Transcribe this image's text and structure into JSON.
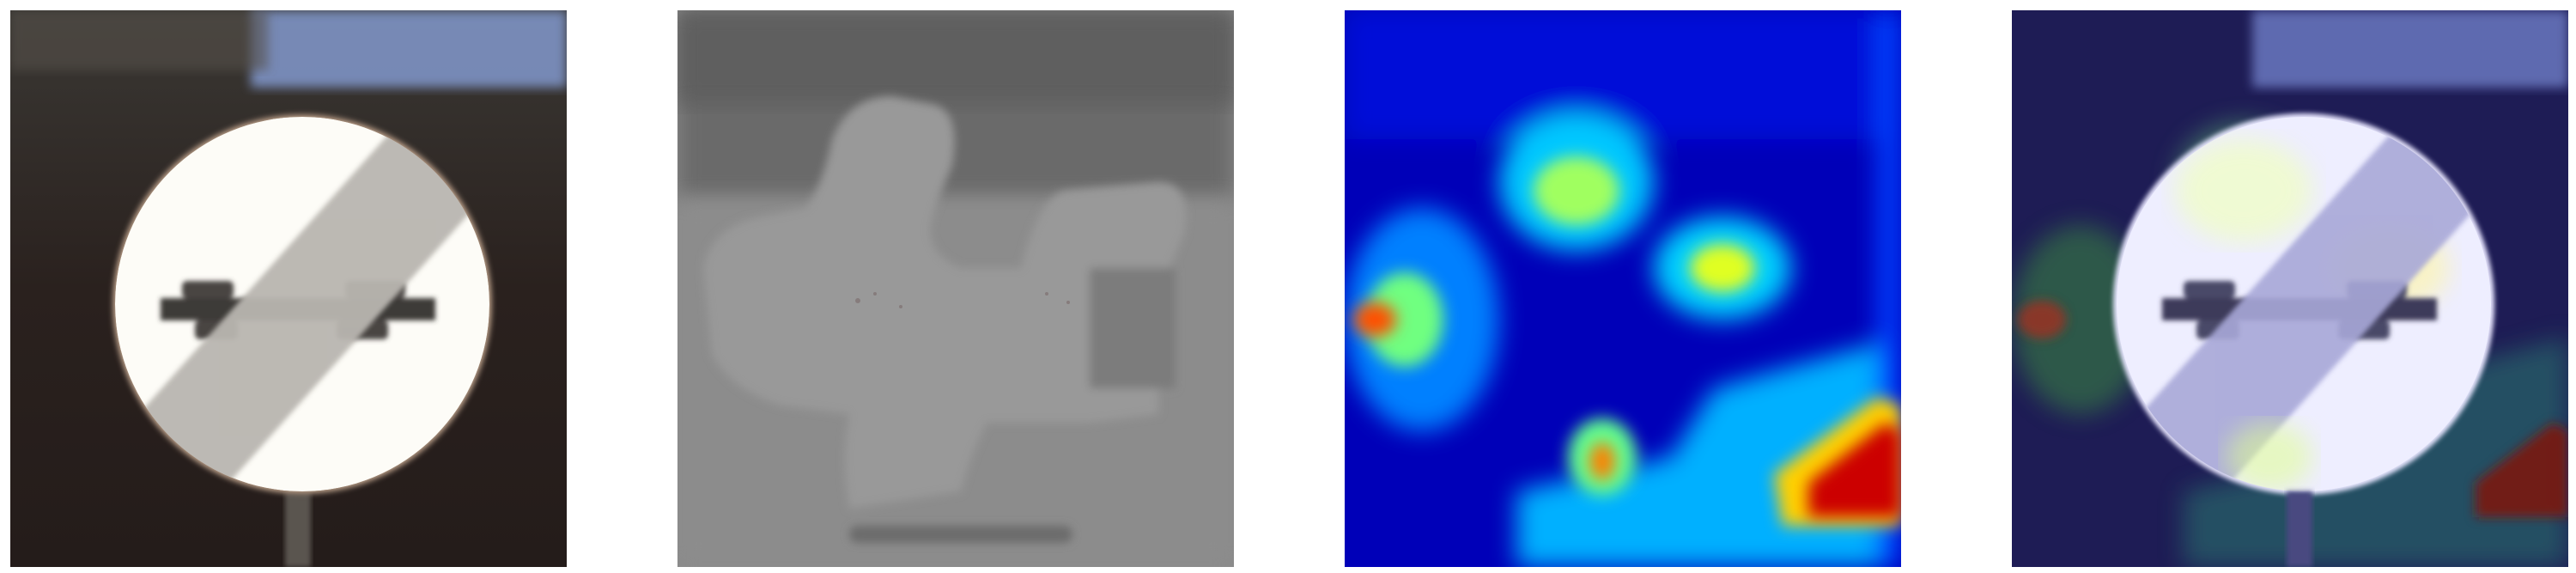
{
  "panels": [
    {
      "id": "original-image",
      "kind": "photo",
      "subject": "end-of-no-overtaking-sign"
    },
    {
      "id": "grayscale-map",
      "kind": "grayscale",
      "subject": "saliency-gray"
    },
    {
      "id": "heatmap",
      "kind": "jet-colormap",
      "subject": "attention-heatmap"
    },
    {
      "id": "overlay",
      "kind": "blend",
      "subject": "heatmap-over-photo"
    }
  ],
  "colors": {
    "background": "#ffffff",
    "photo_dark": "#2b2220",
    "sky_blue": "#7e93c4",
    "sign_white": "#fdfcf7",
    "stripe_gray": "#b9b6b0",
    "jet_low": "#0000c8",
    "jet_mid": "#00f0ff",
    "jet_high": "#ffff00",
    "jet_peak": "#aa0000"
  }
}
